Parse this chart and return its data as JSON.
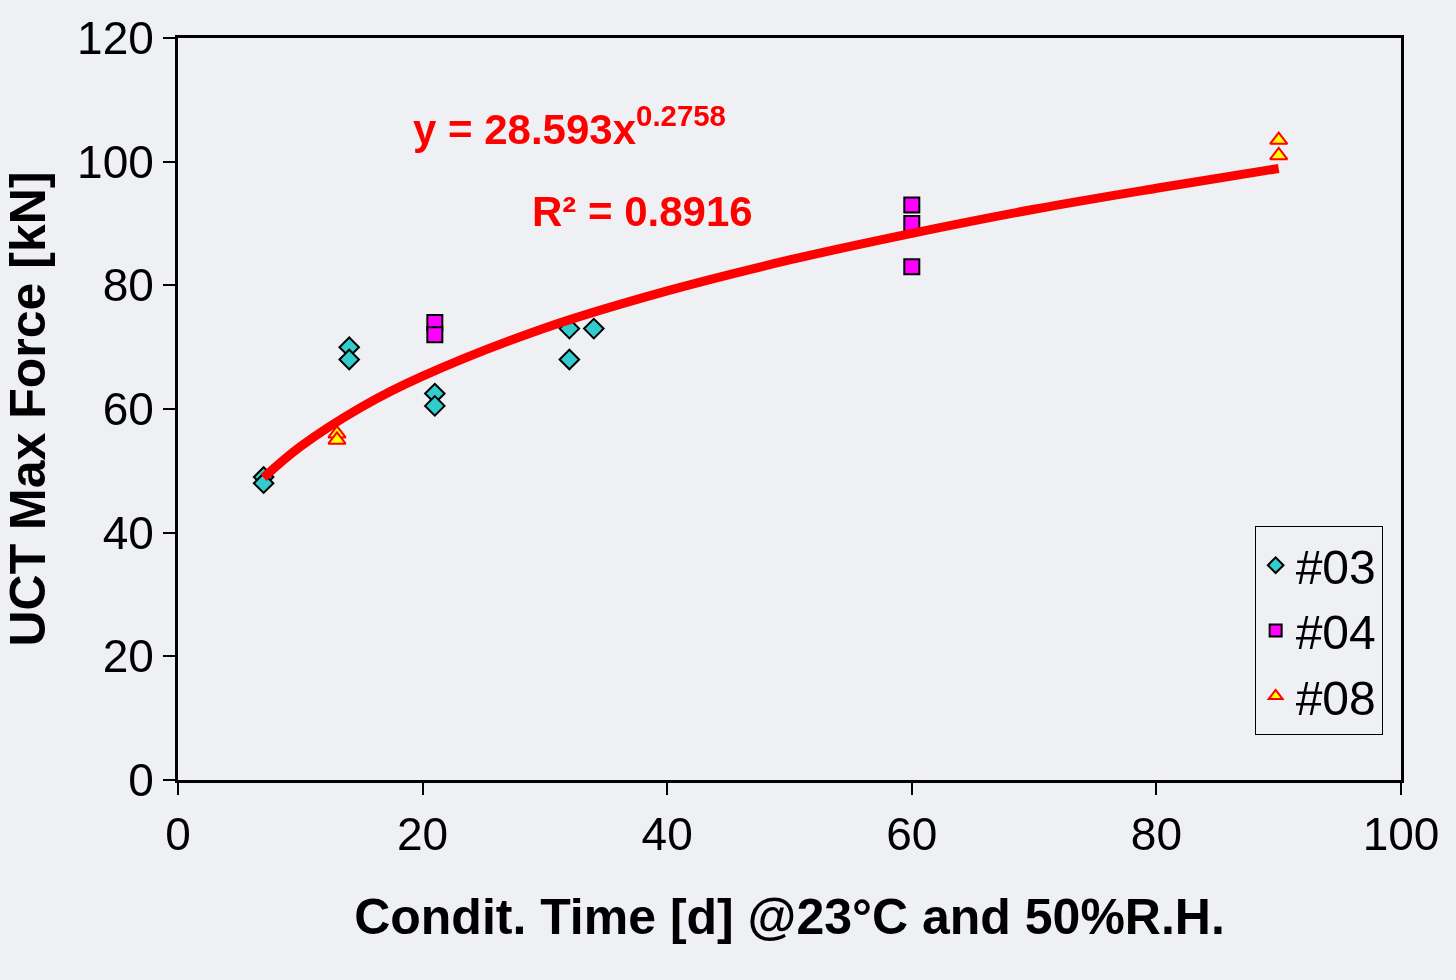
{
  "chart_data": {
    "type": "scatter",
    "xlabel": "Condit. Time [d] @23°C and 50%R.H.",
    "ylabel": "UCT Max Force [kN]",
    "xlim": [
      0,
      100
    ],
    "xticks": [
      0,
      20,
      40,
      60,
      80,
      100
    ],
    "ylim": [
      0,
      120
    ],
    "yticks": [
      0,
      20,
      40,
      60,
      80,
      100,
      120
    ],
    "grid": false,
    "legend": "bottom right",
    "annotations": [
      "y = 28.593x$^{0.2758}$",
      "R² = 0.8916"
    ],
    "series": [
      {
        "name": "#03",
        "color": "#33cccc",
        "marker": "diamond",
        "x": [
          7,
          7,
          14,
          14,
          21,
          21,
          32,
          32,
          34
        ],
        "values": [
          49,
          48,
          70,
          68,
          62.5,
          60.5,
          73,
          68,
          73
        ]
      },
      {
        "name": "#04",
        "color": "#ff00ff",
        "marker": "square",
        "x": [
          21,
          21,
          60,
          60,
          60
        ],
        "values": [
          74,
          72,
          93,
          90,
          83
        ]
      },
      {
        "name": "#08",
        "color": "#ffff00",
        "marker": "triangle",
        "x": [
          13,
          13,
          90,
          90
        ],
        "values": [
          56,
          55,
          103.5,
          101
        ]
      },
      {
        "type": "line",
        "color": "#ff0000",
        "marker": "none",
        "x": [
          7,
          10,
          15,
          20,
          30,
          40,
          50,
          60,
          70,
          80,
          90
        ],
        "values": [
          48.9,
          53.9,
          60.3,
          65.3,
          73.1,
          79.1,
          84.1,
          88.4,
          92.3,
          95.7,
          98.9
        ]
      }
    ]
  }
}
